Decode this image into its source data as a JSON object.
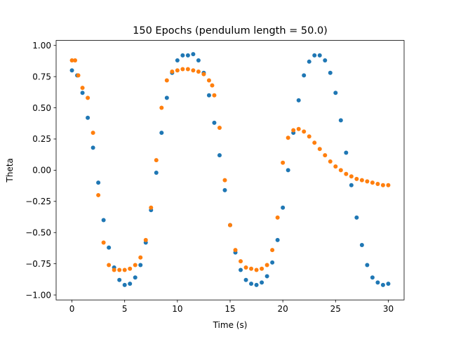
{
  "chart_data": {
    "type": "scatter",
    "title": "150 Epochs (pendulum length = 50.0)",
    "xlabel": "Time (s)",
    "ylabel": "Theta",
    "xlim": [
      -1.5,
      31.5
    ],
    "ylim": [
      -1.04,
      1.04
    ],
    "xticks": [
      0,
      5,
      10,
      15,
      20,
      25,
      30
    ],
    "xtick_labels": [
      "0",
      "5",
      "10",
      "15",
      "20",
      "25",
      "30"
    ],
    "yticks": [
      -1.0,
      -0.75,
      -0.5,
      -0.25,
      0.0,
      0.25,
      0.5,
      0.75,
      1.0
    ],
    "ytick_labels": [
      "−1.00",
      "−0.75",
      "−0.50",
      "−0.25",
      "0.00",
      "0.25",
      "0.50",
      "0.75",
      "1.00"
    ],
    "grid": false,
    "legend": "none",
    "series": [
      {
        "color": "#1f77b4",
        "x": [
          0.0,
          0.5,
          1.0,
          1.5,
          2.0,
          2.5,
          3.0,
          3.5,
          4.0,
          4.5,
          5.0,
          5.5,
          6.0,
          6.5,
          7.0,
          7.5,
          8.0,
          8.5,
          9.0,
          9.5,
          10.0,
          10.5,
          11.0,
          11.5,
          12.0,
          12.5,
          13.0,
          13.5,
          14.0,
          14.5,
          15.0,
          15.5,
          16.0,
          16.5,
          17.0,
          17.5,
          18.0,
          18.5,
          19.0,
          19.5,
          20.0,
          20.5,
          21.0,
          21.5,
          22.0,
          22.5,
          23.0,
          23.5,
          24.0,
          24.5,
          25.0,
          25.5,
          26.0,
          26.5,
          27.0,
          27.5,
          28.0,
          28.5,
          29.0,
          29.5,
          30.0
        ],
        "y": [
          0.8,
          0.76,
          0.62,
          0.42,
          0.18,
          -0.1,
          -0.4,
          -0.62,
          -0.78,
          -0.88,
          -0.92,
          -0.91,
          -0.86,
          -0.76,
          -0.58,
          -0.32,
          -0.02,
          0.3,
          0.58,
          0.78,
          0.88,
          0.92,
          0.92,
          0.93,
          0.88,
          0.78,
          0.6,
          0.38,
          0.12,
          -0.16,
          -0.44,
          -0.66,
          -0.8,
          -0.88,
          -0.91,
          -0.92,
          -0.9,
          -0.85,
          -0.74,
          -0.56,
          -0.3,
          0.0,
          0.3,
          0.56,
          0.76,
          0.87,
          0.92,
          0.92,
          0.88,
          0.78,
          0.62,
          0.4,
          0.14,
          -0.12,
          -0.38,
          -0.6,
          -0.76,
          -0.86,
          -0.9,
          -0.92,
          -0.91
        ]
      },
      {
        "color": "#ff7f0e",
        "x": [
          0.0,
          0.3,
          0.6,
          1.0,
          1.5,
          2.0,
          2.5,
          3.0,
          3.5,
          4.0,
          4.5,
          5.0,
          5.5,
          6.0,
          6.5,
          7.0,
          7.5,
          8.0,
          8.5,
          9.0,
          9.5,
          10.0,
          10.5,
          11.0,
          11.5,
          12.0,
          12.5,
          13.0,
          13.3,
          13.5,
          14.0,
          14.5,
          15.0,
          15.5,
          16.0,
          16.5,
          17.0,
          17.5,
          18.0,
          18.5,
          19.0,
          19.5,
          20.0,
          20.5,
          21.0,
          21.5,
          22.0,
          22.5,
          23.0,
          23.5,
          24.0,
          24.5,
          25.0,
          25.5,
          26.0,
          26.5,
          27.0,
          27.5,
          28.0,
          28.5,
          29.0,
          29.5,
          30.0
        ],
        "y": [
          0.88,
          0.88,
          0.76,
          0.66,
          0.58,
          0.3,
          -0.2,
          -0.58,
          -0.76,
          -0.8,
          -0.8,
          -0.8,
          -0.79,
          -0.76,
          -0.7,
          -0.56,
          -0.3,
          0.08,
          0.5,
          0.72,
          0.79,
          0.8,
          0.81,
          0.81,
          0.8,
          0.79,
          0.77,
          0.72,
          0.68,
          0.6,
          0.34,
          -0.08,
          -0.44,
          -0.64,
          -0.73,
          -0.78,
          -0.79,
          -0.8,
          -0.79,
          -0.76,
          -0.64,
          -0.38,
          0.06,
          0.26,
          0.32,
          0.33,
          0.31,
          0.27,
          0.22,
          0.17,
          0.12,
          0.07,
          0.03,
          0.0,
          -0.03,
          -0.05,
          -0.07,
          -0.08,
          -0.09,
          -0.1,
          -0.11,
          -0.12,
          -0.12
        ]
      }
    ]
  }
}
